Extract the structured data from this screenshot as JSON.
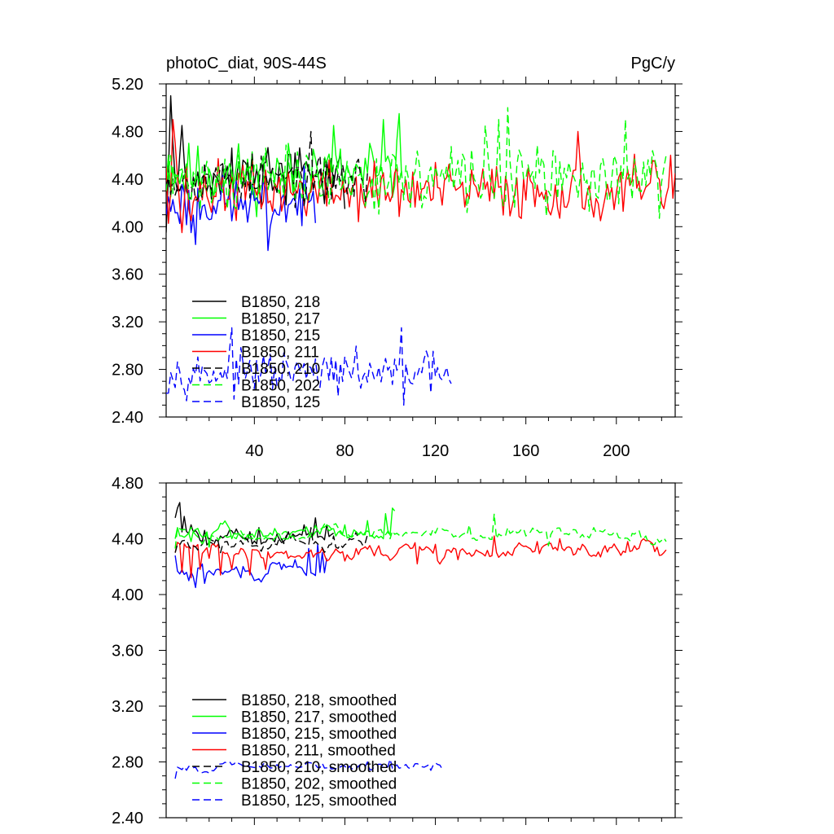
{
  "chart_data": [
    {
      "type": "line",
      "title": "photoC_diat, 90S-44S",
      "units_label": "PgC/y",
      "xlabel": "",
      "ylabel": "",
      "xlim": [
        1,
        226
      ],
      "ylim": [
        2.4,
        5.2
      ],
      "x_ticks": [
        40,
        80,
        120,
        160,
        200
      ],
      "x_tick_labels": [
        "40",
        "80",
        "120",
        "160",
        "200"
      ],
      "y_ticks": [
        2.4,
        2.8,
        3.2,
        3.6,
        4.0,
        4.4,
        4.8,
        5.2
      ],
      "y_tick_labels": [
        "2.40",
        "2.80",
        "3.20",
        "3.60",
        "4.00",
        "4.40",
        "4.80",
        "5.20"
      ],
      "grid": false,
      "legend_position": "bottom-left",
      "series": [
        {
          "name": "B1850, 218",
          "color": "#000000",
          "dash": "solid",
          "x_end": 80,
          "mean": 4.42,
          "noise": 0.13,
          "seed": 3,
          "points": [
            [
              1,
              3.95
            ],
            [
              2,
              4.45
            ],
            [
              3,
              5.1
            ],
            [
              4,
              4.7
            ],
            [
              5,
              4.4
            ],
            [
              6,
              4.3
            ],
            [
              7,
              4.6
            ],
            [
              8,
              4.85
            ],
            [
              9,
              4.55
            ],
            [
              10,
              4.3
            ]
          ]
        },
        {
          "name": "B1850, 217",
          "color": "#00ff00",
          "dash": "solid",
          "x_end": 105,
          "mean": 4.44,
          "noise": 0.13,
          "seed": 11,
          "points": [
            [
              1,
              4.35
            ],
            [
              2,
              4.6
            ],
            [
              3,
              4.25
            ],
            [
              4,
              4.5
            ],
            [
              66,
              4.65
            ],
            [
              75,
              4.85
            ],
            [
              91,
              4.7
            ],
            [
              97,
              4.9
            ],
            [
              104,
              4.95
            ],
            [
              105,
              4.45
            ]
          ]
        },
        {
          "name": "B1850, 215",
          "color": "#0000ff",
          "dash": "solid",
          "x_end": 67,
          "mean": 4.2,
          "noise": 0.11,
          "seed": 23,
          "points": [
            [
              1,
              4.1
            ],
            [
              2,
              4.25
            ],
            [
              12,
              3.95
            ],
            [
              14,
              3.85
            ],
            [
              46,
              3.8
            ],
            [
              47,
              4.0
            ]
          ]
        },
        {
          "name": "B1850, 211",
          "color": "#ff0000",
          "dash": "solid",
          "x_end": 226,
          "mean": 4.3,
          "noise": 0.12,
          "seed": 37,
          "points": [
            [
              1,
              4.5
            ],
            [
              3,
              4.3
            ],
            [
              4,
              4.9
            ],
            [
              5,
              4.7
            ],
            [
              8,
              3.95
            ],
            [
              12,
              4.05
            ],
            [
              183,
              4.8
            ],
            [
              193,
              4.05
            ],
            [
              217,
              4.55
            ],
            [
              224,
              4.6
            ],
            [
              226,
              4.45
            ]
          ]
        },
        {
          "name": "B1850, 210",
          "color": "#000000",
          "dash": "dashed",
          "x_end": 90,
          "mean": 4.4,
          "noise": 0.1,
          "seed": 53,
          "points": [
            [
              1,
              4.35
            ],
            [
              65,
              4.8
            ],
            [
              66,
              4.3
            ],
            [
              90,
              4.45
            ]
          ]
        },
        {
          "name": "B1850, 202",
          "color": "#00ff00",
          "dash": "dashed",
          "x_end": 222,
          "mean": 4.4,
          "noise": 0.13,
          "seed": 71,
          "points": [
            [
              1,
              4.3
            ],
            [
              142,
              4.85
            ],
            [
              148,
              4.9
            ],
            [
              152,
              5.0
            ],
            [
              153,
              4.55
            ],
            [
              204,
              4.9
            ],
            [
              205,
              4.4
            ],
            [
              222,
              4.6
            ]
          ]
        },
        {
          "name": "B1850, 125",
          "color": "#0000ff",
          "dash": "dashed",
          "x_end": 127,
          "mean": 2.77,
          "noise": 0.08,
          "seed": 97,
          "points": [
            [
              1,
              2.6
            ],
            [
              30,
              3.15
            ],
            [
              31,
              2.55
            ],
            [
              105,
              3.15
            ],
            [
              106,
              2.5
            ],
            [
              127,
              2.68
            ]
          ]
        }
      ]
    },
    {
      "type": "line",
      "title": "",
      "xlabel": "",
      "ylabel": "",
      "xlim": [
        1,
        226
      ],
      "ylim": [
        2.4,
        4.8
      ],
      "x_ticks": [
        40,
        80,
        120,
        160,
        200
      ],
      "x_tick_labels": [
        "",
        "",
        "",
        "",
        ""
      ],
      "y_ticks": [
        2.4,
        2.8,
        3.2,
        3.6,
        4.0,
        4.4,
        4.8
      ],
      "y_tick_labels": [
        "2.40",
        "2.80",
        "3.20",
        "3.60",
        "4.00",
        "4.40",
        "4.80"
      ],
      "grid": false,
      "legend_position": "bottom-left",
      "series": [
        {
          "name": "B1850, 218, smoothed",
          "color": "#000000",
          "dash": "solid",
          "x_end": 75,
          "mean": 4.44,
          "noise": 0.05,
          "seed": 5,
          "points": [
            [
              5,
              4.55
            ],
            [
              6,
              4.62
            ],
            [
              7,
              4.66
            ],
            [
              9,
              4.56
            ],
            [
              12,
              4.5
            ],
            [
              18,
              4.46
            ],
            [
              25,
              4.42
            ],
            [
              32,
              4.47
            ],
            [
              38,
              4.45
            ],
            [
              42,
              4.48
            ],
            [
              48,
              4.4
            ],
            [
              55,
              4.45
            ],
            [
              62,
              4.5
            ],
            [
              67,
              4.55
            ],
            [
              72,
              4.5
            ],
            [
              75,
              4.44
            ]
          ]
        },
        {
          "name": "B1850, 217, smoothed",
          "color": "#00ff00",
          "dash": "solid",
          "x_end": 102,
          "mean": 4.44,
          "noise": 0.04,
          "seed": 13,
          "points": [
            [
              5,
              4.4
            ],
            [
              6,
              4.48
            ],
            [
              8,
              4.42
            ],
            [
              12,
              4.38
            ],
            [
              20,
              4.36
            ],
            [
              30,
              4.4
            ],
            [
              40,
              4.41
            ],
            [
              50,
              4.44
            ],
            [
              60,
              4.46
            ],
            [
              70,
              4.48
            ],
            [
              80,
              4.5
            ],
            [
              90,
              4.53
            ],
            [
              98,
              4.58
            ],
            [
              101,
              4.62
            ],
            [
              102,
              4.6
            ]
          ]
        },
        {
          "name": "B1850, 215, smoothed",
          "color": "#0000ff",
          "dash": "solid",
          "x_end": 72,
          "mean": 4.16,
          "noise": 0.04,
          "seed": 29,
          "points": [
            [
              5,
              4.28
            ],
            [
              8,
              4.18
            ],
            [
              11,
              4.1
            ],
            [
              14,
              4.05
            ],
            [
              18,
              4.08
            ],
            [
              22,
              4.14
            ],
            [
              28,
              4.16
            ],
            [
              34,
              4.12
            ],
            [
              40,
              4.1
            ],
            [
              46,
              4.15
            ],
            [
              52,
              4.18
            ],
            [
              58,
              4.25
            ],
            [
              64,
              4.33
            ],
            [
              68,
              4.36
            ],
            [
              70,
              4.3
            ],
            [
              72,
              4.26
            ]
          ]
        },
        {
          "name": "B1850, 211, smoothed",
          "color": "#ff0000",
          "dash": "solid",
          "x_end": 222,
          "mean": 4.31,
          "noise": 0.05,
          "seed": 41,
          "points": [
            [
              5,
              4.3
            ],
            [
              8,
              4.16
            ],
            [
              12,
              4.12
            ],
            [
              16,
              4.18
            ],
            [
              20,
              4.26
            ],
            [
              25,
              4.14
            ],
            [
              30,
              4.18
            ],
            [
              38,
              4.14
            ],
            [
              45,
              4.18
            ],
            [
              55,
              4.26
            ],
            [
              65,
              4.32
            ],
            [
              75,
              4.3
            ],
            [
              80,
              4.24
            ],
            [
              85,
              4.33
            ],
            [
              95,
              4.35
            ],
            [
              105,
              4.34
            ],
            [
              112,
              4.22
            ],
            [
              120,
              4.36
            ],
            [
              130,
              4.25
            ],
            [
              138,
              4.32
            ],
            [
              146,
              4.42
            ],
            [
              155,
              4.33
            ],
            [
              165,
              4.38
            ],
            [
              175,
              4.4
            ],
            [
              185,
              4.36
            ],
            [
              195,
              4.35
            ],
            [
              205,
              4.38
            ],
            [
              212,
              4.4
            ],
            [
              218,
              4.34
            ],
            [
              222,
              4.32
            ]
          ]
        },
        {
          "name": "B1850, 210, smoothed",
          "color": "#000000",
          "dash": "dashed",
          "x_end": 90,
          "mean": 4.38,
          "noise": 0.04,
          "seed": 59,
          "points": [
            [
              5,
              4.3
            ],
            [
              15,
              4.32
            ],
            [
              25,
              4.3
            ],
            [
              35,
              4.36
            ],
            [
              45,
              4.34
            ],
            [
              55,
              4.44
            ],
            [
              65,
              4.48
            ],
            [
              75,
              4.42
            ],
            [
              85,
              4.45
            ],
            [
              90,
              4.43
            ]
          ]
        },
        {
          "name": "B1850, 202, smoothed",
          "color": "#00ff00",
          "dash": "dashed",
          "x_end": 222,
          "mean": 4.43,
          "noise": 0.04,
          "seed": 73,
          "points": [
            [
              5,
              4.33
            ],
            [
              20,
              4.34
            ],
            [
              40,
              4.38
            ],
            [
              60,
              4.4
            ],
            [
              80,
              4.42
            ],
            [
              100,
              4.4
            ],
            [
              120,
              4.44
            ],
            [
              135,
              4.5
            ],
            [
              146,
              4.58
            ],
            [
              152,
              4.48
            ],
            [
              160,
              4.42
            ],
            [
              170,
              4.35
            ],
            [
              180,
              4.45
            ],
            [
              190,
              4.48
            ],
            [
              200,
              4.45
            ],
            [
              210,
              4.46
            ],
            [
              218,
              4.4
            ],
            [
              222,
              4.38
            ]
          ]
        },
        {
          "name": "B1850, 125, smoothed",
          "color": "#0000ff",
          "dash": "dashed",
          "x_end": 123,
          "mean": 2.77,
          "noise": 0.025,
          "seed": 101,
          "points": [
            [
              5,
              2.68
            ],
            [
              10,
              2.74
            ],
            [
              20,
              2.72
            ],
            [
              30,
              2.78
            ],
            [
              40,
              2.76
            ],
            [
              50,
              2.78
            ],
            [
              60,
              2.76
            ],
            [
              70,
              2.79
            ],
            [
              80,
              2.77
            ],
            [
              90,
              2.8
            ],
            [
              100,
              2.82
            ],
            [
              110,
              2.76
            ],
            [
              118,
              2.74
            ],
            [
              123,
              2.75
            ]
          ]
        }
      ]
    }
  ]
}
